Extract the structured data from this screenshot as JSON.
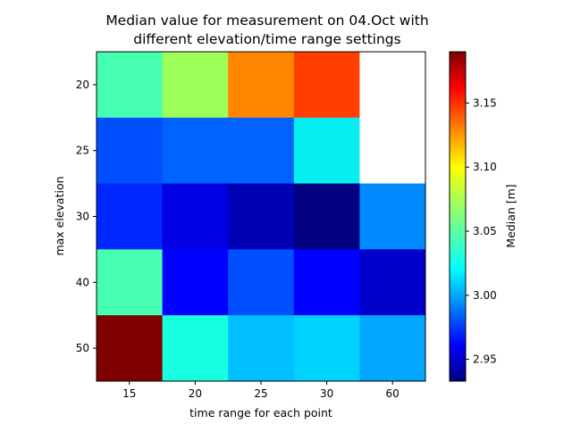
{
  "chart_data": {
    "type": "heatmap",
    "title_line1": "Median value for measurement on 04.Oct with",
    "title_line2": "different elevation/time range settings",
    "xlabel": "time range for each point",
    "ylabel": "max elevation",
    "x_categories": [
      "15",
      "20",
      "25",
      "30",
      "60"
    ],
    "y_categories": [
      "20",
      "25",
      "30",
      "40",
      "50"
    ],
    "values": [
      [
        3.045,
        3.072,
        3.13,
        3.15,
        null
      ],
      [
        2.985,
        2.99,
        2.99,
        3.025,
        null
      ],
      [
        2.975,
        2.955,
        2.945,
        2.933,
        3.0
      ],
      [
        3.045,
        2.965,
        2.985,
        2.962,
        2.95
      ],
      [
        3.19,
        3.03,
        3.013,
        3.018,
        3.007
      ]
    ],
    "colormap": "jet",
    "colorbar": {
      "label": "Median [m]",
      "vmin": 2.933,
      "vmax": 3.19,
      "ticks": [
        "2.95",
        "3.00",
        "3.05",
        "3.10",
        "3.15"
      ]
    }
  }
}
